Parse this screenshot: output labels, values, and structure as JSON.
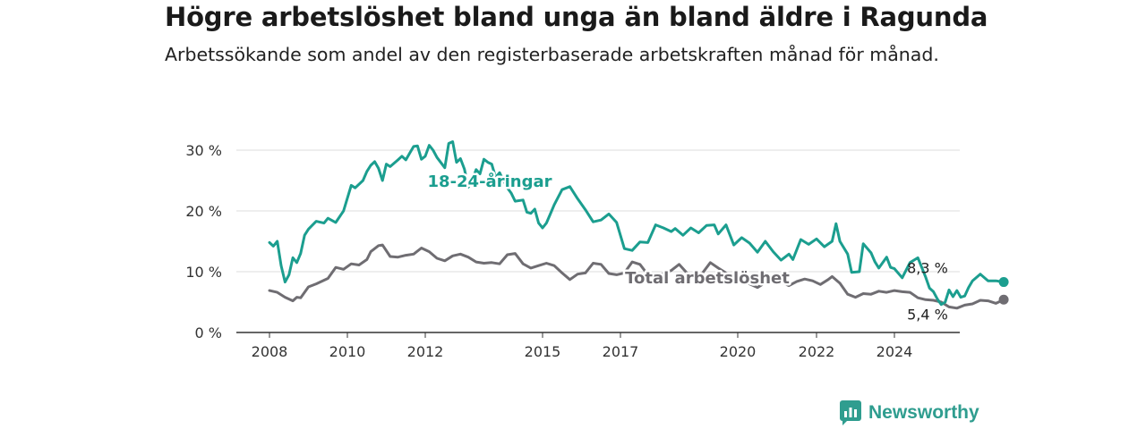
{
  "title": "Högre arbetslöshet bland unga än bland äldre i Ragunda",
  "subtitle": "Arbetssökande som andel av den registerbaserade arbetskraften månad för månad.",
  "brand": {
    "name": "Newsworthy",
    "icon": "newsworthy-logo-icon",
    "color": "#2f9d8f"
  },
  "chart_data": {
    "type": "line",
    "title": "Högre arbetslöshet bland unga än bland äldre i Ragunda",
    "subtitle": "Arbetssökande som andel av den registerbaserade arbetskraften månad för månad.",
    "xlabel": "",
    "ylabel": "",
    "xlim": [
      2007.6,
      2025.6
    ],
    "ylim": [
      0,
      30
    ],
    "x_ticks": [
      {
        "value": 2008,
        "label": "2008"
      },
      {
        "value": 2010,
        "label": "2010"
      },
      {
        "value": 2012,
        "label": "2012"
      },
      {
        "value": 2015,
        "label": "2015"
      },
      {
        "value": 2017,
        "label": "2017"
      },
      {
        "value": 2020,
        "label": "2020"
      },
      {
        "value": 2022,
        "label": "2022"
      },
      {
        "value": 2024,
        "label": "2024"
      }
    ],
    "y_ticks": [
      {
        "value": 0,
        "label": "0 %"
      },
      {
        "value": 10,
        "label": "10 %"
      },
      {
        "value": 20,
        "label": "20 %"
      },
      {
        "value": 30,
        "label": "30 %"
      }
    ],
    "grid": "horizontal",
    "series": [
      {
        "name": "18-24-åringar",
        "color": "#1b9e8f",
        "end_label": "8,3 %",
        "points": [
          [
            2008.0,
            14.8
          ],
          [
            2008.1,
            14.2
          ],
          [
            2008.2,
            15.0
          ],
          [
            2008.3,
            11.0
          ],
          [
            2008.4,
            8.3
          ],
          [
            2008.5,
            9.5
          ],
          [
            2008.6,
            12.3
          ],
          [
            2008.7,
            11.5
          ],
          [
            2008.8,
            13.0
          ],
          [
            2008.9,
            16.0
          ],
          [
            2009.0,
            17.0
          ],
          [
            2009.2,
            18.3
          ],
          [
            2009.4,
            18.0
          ],
          [
            2009.5,
            18.8
          ],
          [
            2009.7,
            18.1
          ],
          [
            2009.9,
            20.0
          ],
          [
            2010.1,
            24.2
          ],
          [
            2010.2,
            23.8
          ],
          [
            2010.4,
            25.0
          ],
          [
            2010.5,
            26.5
          ],
          [
            2010.6,
            27.5
          ],
          [
            2010.7,
            28.1
          ],
          [
            2010.8,
            27.0
          ],
          [
            2010.9,
            25.0
          ],
          [
            2011.0,
            27.7
          ],
          [
            2011.1,
            27.3
          ],
          [
            2011.3,
            28.4
          ],
          [
            2011.4,
            29.0
          ],
          [
            2011.5,
            28.4
          ],
          [
            2011.6,
            29.5
          ],
          [
            2011.7,
            30.6
          ],
          [
            2011.8,
            30.7
          ],
          [
            2011.9,
            28.5
          ],
          [
            2012.0,
            29.0
          ],
          [
            2012.1,
            30.8
          ],
          [
            2012.2,
            30.0
          ],
          [
            2012.3,
            28.8
          ],
          [
            2012.5,
            27.1
          ],
          [
            2012.6,
            31.1
          ],
          [
            2012.7,
            31.4
          ],
          [
            2012.8,
            28.0
          ],
          [
            2012.9,
            28.6
          ],
          [
            2013.0,
            26.9
          ],
          [
            2013.1,
            23.9
          ],
          [
            2013.2,
            25.0
          ],
          [
            2013.3,
            26.8
          ],
          [
            2013.4,
            26.1
          ],
          [
            2013.5,
            28.5
          ],
          [
            2013.6,
            28.0
          ],
          [
            2013.7,
            27.7
          ],
          [
            2013.8,
            25.5
          ],
          [
            2013.9,
            26.3
          ],
          [
            2014.0,
            25.0
          ],
          [
            2014.1,
            23.8
          ],
          [
            2014.2,
            22.9
          ],
          [
            2014.3,
            21.6
          ],
          [
            2014.5,
            21.8
          ],
          [
            2014.6,
            19.8
          ],
          [
            2014.7,
            19.6
          ],
          [
            2014.8,
            20.3
          ],
          [
            2014.9,
            18.0
          ],
          [
            2015.0,
            17.2
          ],
          [
            2015.1,
            18.0
          ],
          [
            2015.2,
            19.5
          ],
          [
            2015.3,
            21.0
          ],
          [
            2015.5,
            23.5
          ],
          [
            2015.7,
            24.0
          ],
          [
            2015.9,
            22.0
          ],
          [
            2016.1,
            20.2
          ],
          [
            2016.3,
            18.2
          ],
          [
            2016.5,
            18.5
          ],
          [
            2016.7,
            19.5
          ],
          [
            2016.9,
            18.1
          ],
          [
            2017.1,
            13.8
          ],
          [
            2017.3,
            13.5
          ],
          [
            2017.5,
            14.9
          ],
          [
            2017.7,
            14.8
          ],
          [
            2017.9,
            17.7
          ],
          [
            2018.1,
            17.2
          ],
          [
            2018.3,
            16.6
          ],
          [
            2018.4,
            17.1
          ],
          [
            2018.6,
            16.0
          ],
          [
            2018.8,
            17.2
          ],
          [
            2019.0,
            16.4
          ],
          [
            2019.2,
            17.6
          ],
          [
            2019.4,
            17.7
          ],
          [
            2019.5,
            16.2
          ],
          [
            2019.7,
            17.7
          ],
          [
            2019.9,
            14.4
          ],
          [
            2020.1,
            15.6
          ],
          [
            2020.3,
            14.7
          ],
          [
            2020.5,
            13.2
          ],
          [
            2020.7,
            15.0
          ],
          [
            2020.9,
            13.3
          ],
          [
            2021.1,
            11.9
          ],
          [
            2021.3,
            12.9
          ],
          [
            2021.4,
            12.0
          ],
          [
            2021.6,
            15.3
          ],
          [
            2021.8,
            14.5
          ],
          [
            2022.0,
            15.4
          ],
          [
            2022.2,
            14.1
          ],
          [
            2022.4,
            15.0
          ],
          [
            2022.5,
            17.9
          ],
          [
            2022.6,
            15.0
          ],
          [
            2022.8,
            12.9
          ],
          [
            2022.9,
            9.9
          ],
          [
            2023.1,
            10.0
          ],
          [
            2023.2,
            14.6
          ],
          [
            2023.4,
            13.1
          ],
          [
            2023.5,
            11.6
          ],
          [
            2023.6,
            10.6
          ],
          [
            2023.8,
            12.4
          ],
          [
            2023.9,
            10.7
          ],
          [
            2024.0,
            10.5
          ],
          [
            2024.2,
            9.0
          ],
          [
            2024.4,
            11.5
          ],
          [
            2024.6,
            12.3
          ],
          [
            2024.8,
            9.1
          ],
          [
            2024.9,
            7.3
          ],
          [
            2025.0,
            6.7
          ],
          [
            2025.1,
            5.5
          ],
          [
            2025.2,
            4.6
          ],
          [
            2025.3,
            5.0
          ],
          [
            2025.4,
            7.0
          ],
          [
            2025.5,
            5.9
          ],
          [
            2025.6,
            6.9
          ],
          [
            2025.7,
            5.8
          ],
          [
            2025.8,
            6.0
          ],
          [
            2025.9,
            7.4
          ],
          [
            2026.0,
            8.5
          ],
          [
            2026.2,
            9.6
          ],
          [
            2026.4,
            8.5
          ],
          [
            2026.6,
            8.5
          ],
          [
            2026.8,
            8.3
          ]
        ]
      },
      {
        "name": "Total arbetslöshet",
        "color": "#6f6d72",
        "end_label": "5,4 %",
        "points": [
          [
            2008.0,
            6.9
          ],
          [
            2008.2,
            6.6
          ],
          [
            2008.4,
            5.8
          ],
          [
            2008.6,
            5.2
          ],
          [
            2008.7,
            5.8
          ],
          [
            2008.8,
            5.7
          ],
          [
            2009.0,
            7.5
          ],
          [
            2009.2,
            8.0
          ],
          [
            2009.5,
            8.9
          ],
          [
            2009.7,
            10.7
          ],
          [
            2009.9,
            10.4
          ],
          [
            2010.1,
            11.3
          ],
          [
            2010.3,
            11.1
          ],
          [
            2010.5,
            12.0
          ],
          [
            2010.6,
            13.3
          ],
          [
            2010.8,
            14.3
          ],
          [
            2010.9,
            14.4
          ],
          [
            2011.1,
            12.5
          ],
          [
            2011.3,
            12.4
          ],
          [
            2011.5,
            12.7
          ],
          [
            2011.7,
            12.9
          ],
          [
            2011.9,
            13.9
          ],
          [
            2012.1,
            13.3
          ],
          [
            2012.3,
            12.2
          ],
          [
            2012.5,
            11.8
          ],
          [
            2012.7,
            12.6
          ],
          [
            2012.9,
            12.9
          ],
          [
            2013.1,
            12.4
          ],
          [
            2013.3,
            11.6
          ],
          [
            2013.5,
            11.4
          ],
          [
            2013.7,
            11.5
          ],
          [
            2013.9,
            11.3
          ],
          [
            2014.1,
            12.8
          ],
          [
            2014.3,
            13.0
          ],
          [
            2014.5,
            11.3
          ],
          [
            2014.7,
            10.6
          ],
          [
            2014.9,
            11.0
          ],
          [
            2015.1,
            11.4
          ],
          [
            2015.3,
            11.0
          ],
          [
            2015.5,
            9.8
          ],
          [
            2015.7,
            8.7
          ],
          [
            2015.9,
            9.6
          ],
          [
            2016.1,
            9.8
          ],
          [
            2016.3,
            11.4
          ],
          [
            2016.5,
            11.2
          ],
          [
            2016.7,
            9.7
          ],
          [
            2016.9,
            9.5
          ],
          [
            2017.1,
            9.8
          ],
          [
            2017.3,
            11.6
          ],
          [
            2017.5,
            11.2
          ],
          [
            2017.7,
            9.5
          ],
          [
            2017.9,
            9.0
          ],
          [
            2018.1,
            9.7
          ],
          [
            2018.3,
            10.2
          ],
          [
            2018.5,
            11.2
          ],
          [
            2018.7,
            9.8
          ],
          [
            2018.9,
            9.0
          ],
          [
            2019.1,
            9.8
          ],
          [
            2019.3,
            11.5
          ],
          [
            2019.5,
            10.6
          ],
          [
            2019.7,
            9.8
          ],
          [
            2019.9,
            9.0
          ],
          [
            2020.1,
            8.6
          ],
          [
            2020.3,
            8.0
          ],
          [
            2020.5,
            7.4
          ],
          [
            2020.7,
            8.2
          ],
          [
            2020.9,
            8.8
          ],
          [
            2021.1,
            8.3
          ],
          [
            2021.3,
            7.7
          ],
          [
            2021.5,
            8.4
          ],
          [
            2021.7,
            8.8
          ],
          [
            2021.9,
            8.5
          ],
          [
            2022.1,
            7.9
          ],
          [
            2022.3,
            8.7
          ],
          [
            2022.4,
            9.2
          ],
          [
            2022.6,
            8.1
          ],
          [
            2022.8,
            6.3
          ],
          [
            2023.0,
            5.8
          ],
          [
            2023.2,
            6.4
          ],
          [
            2023.4,
            6.3
          ],
          [
            2023.6,
            6.8
          ],
          [
            2023.8,
            6.6
          ],
          [
            2024.0,
            6.9
          ],
          [
            2024.2,
            6.7
          ],
          [
            2024.4,
            6.6
          ],
          [
            2024.6,
            5.7
          ],
          [
            2024.8,
            5.4
          ],
          [
            2025.0,
            5.3
          ],
          [
            2025.2,
            5.0
          ],
          [
            2025.4,
            4.2
          ],
          [
            2025.6,
            4.0
          ],
          [
            2025.8,
            4.5
          ],
          [
            2026.0,
            4.7
          ],
          [
            2026.2,
            5.3
          ],
          [
            2026.4,
            5.2
          ],
          [
            2026.6,
            4.8
          ],
          [
            2026.8,
            5.4
          ]
        ]
      }
    ]
  }
}
